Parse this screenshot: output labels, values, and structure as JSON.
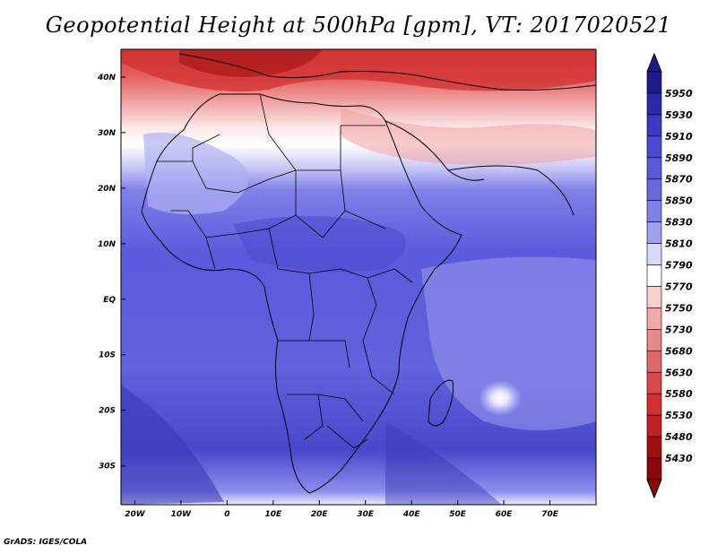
{
  "title": "Geopotential Height at 500hPa [gpm], VT: 2017020521",
  "footer": "GrADS: IGES/COLA",
  "map": {
    "lon_range": [
      -23,
      80
    ],
    "lat_range": [
      -37,
      45
    ],
    "x_ticks": [
      "20W",
      "10W",
      "0",
      "10E",
      "20E",
      "30E",
      "40E",
      "50E",
      "60E",
      "70E"
    ],
    "y_ticks": [
      "40N",
      "30N",
      "20N",
      "10N",
      "EQ",
      "10S",
      "20S",
      "30S"
    ]
  },
  "colorbar": {
    "levels": [
      "5950",
      "5930",
      "5910",
      "5890",
      "5870",
      "5850",
      "5830",
      "5810",
      "5790",
      "5770",
      "5750",
      "5730",
      "5680",
      "5630",
      "5580",
      "5530",
      "5480",
      "5430"
    ],
    "colors": [
      "#1e1a8c",
      "#2a2aa8",
      "#3a3ac0",
      "#4a4ad0",
      "#5a5ad8",
      "#6868e0",
      "#8080ea",
      "#a0a0f2",
      "#d8d8fa",
      "#ffffff",
      "#f8d0d0",
      "#f0a8a8",
      "#e88888",
      "#e06868",
      "#d84848",
      "#d03030",
      "#c02020",
      "#a01010",
      "#8a0808"
    ]
  }
}
